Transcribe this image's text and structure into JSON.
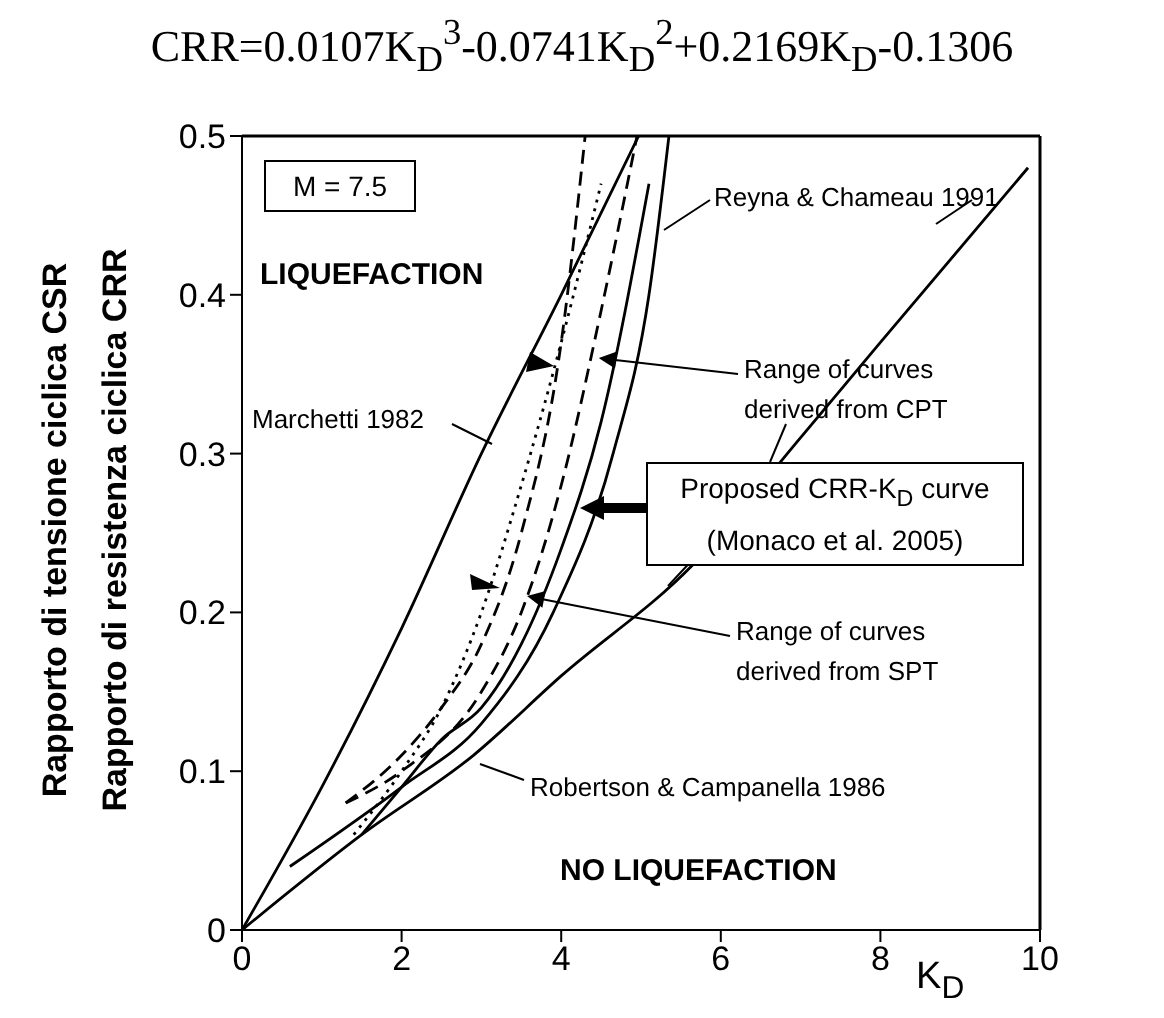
{
  "chart_data": {
    "type": "line",
    "title": "CRR=0.0107K$_{D}$$^{3}$-0.0741K$_{D}$$^{2}$+0.2169K$_{D}$-0.1306",
    "xlabel": "K$_{D}$",
    "ylabel": "Rapporto di tensione ciclica CSR\nRapporto di resistenza ciclica CRR",
    "xlim": [
      0,
      10
    ],
    "xticks": [
      0,
      2,
      4,
      6,
      8,
      10
    ],
    "ylim": [
      0,
      0.5
    ],
    "yticks": [
      0,
      0.1,
      0.2,
      0.3,
      0.4,
      0.5
    ],
    "grid": false,
    "legend": false,
    "marker": "none",
    "series": [
      {
        "color": "#000000",
        "line_style": "solid",
        "x": [
          1.5,
          2,
          2.5,
          3,
          3.5,
          4,
          4.5,
          5.1
        ],
        "values": [
          0.06,
          0.09,
          0.12,
          0.14,
          0.18,
          0.24,
          0.32,
          0.47
        ]
      },
      {
        "color": "#000000",
        "line_style": "solid",
        "x": [
          0,
          1,
          2,
          3,
          4,
          4.97
        ],
        "values": [
          0,
          0.09,
          0.19,
          0.3,
          0.4,
          0.5
        ]
      },
      {
        "color": "#000000",
        "line_style": "solid",
        "x": [
          0.6,
          2,
          3,
          3.9,
          4.65,
          5.1,
          5.35
        ],
        "values": [
          0.04,
          0.09,
          0.13,
          0.2,
          0.3,
          0.4,
          0.5
        ]
      },
      {
        "color": "#000000",
        "line_style": "solid",
        "x": [
          0,
          1.5,
          2.9,
          4,
          5.65,
          7,
          8,
          9.85
        ],
        "values": [
          0,
          0.06,
          0.11,
          0.16,
          0.23,
          0.31,
          0.37,
          0.48
        ]
      },
      {
        "color": "#000000",
        "line_style": "dashed",
        "x": [
          1.3,
          2,
          2.5,
          3,
          3.5,
          4,
          4.3
        ],
        "values": [
          0.08,
          0.11,
          0.14,
          0.18,
          0.25,
          0.37,
          0.5
        ]
      },
      {
        "color": "#000000",
        "line_style": "dashed",
        "x": [
          1.3,
          2,
          3,
          3.5,
          4,
          4.5,
          4.95
        ],
        "values": [
          0.08,
          0.1,
          0.15,
          0.2,
          0.28,
          0.39,
          0.5
        ]
      },
      {
        "color": "#000000",
        "line_style": "dotted",
        "x": [
          1.4,
          2,
          2.5,
          3,
          3.5,
          4,
          4.5
        ],
        "values": [
          0.06,
          0.1,
          0.14,
          0.2,
          0.28,
          0.37,
          0.47
        ]
      }
    ],
    "annotations": [
      "M = 7.5",
      "LIQUEFACTION",
      "Marchetti 1982",
      "Reyna & Chameau 1991",
      {
        "text": "Range of curves\nderived from CPT",
        "x": 4.5,
        "y": 0.36
      },
      "Proposed CRR-K$_{D}$ curve\n(Monaco et al. 2005)",
      {
        "text": "Range of curves\nderived from SPT",
        "x": 3.6,
        "y": 0.21
      },
      "Robertson & Campanella 1986",
      "NO LIQUEFACTION"
    ]
  }
}
